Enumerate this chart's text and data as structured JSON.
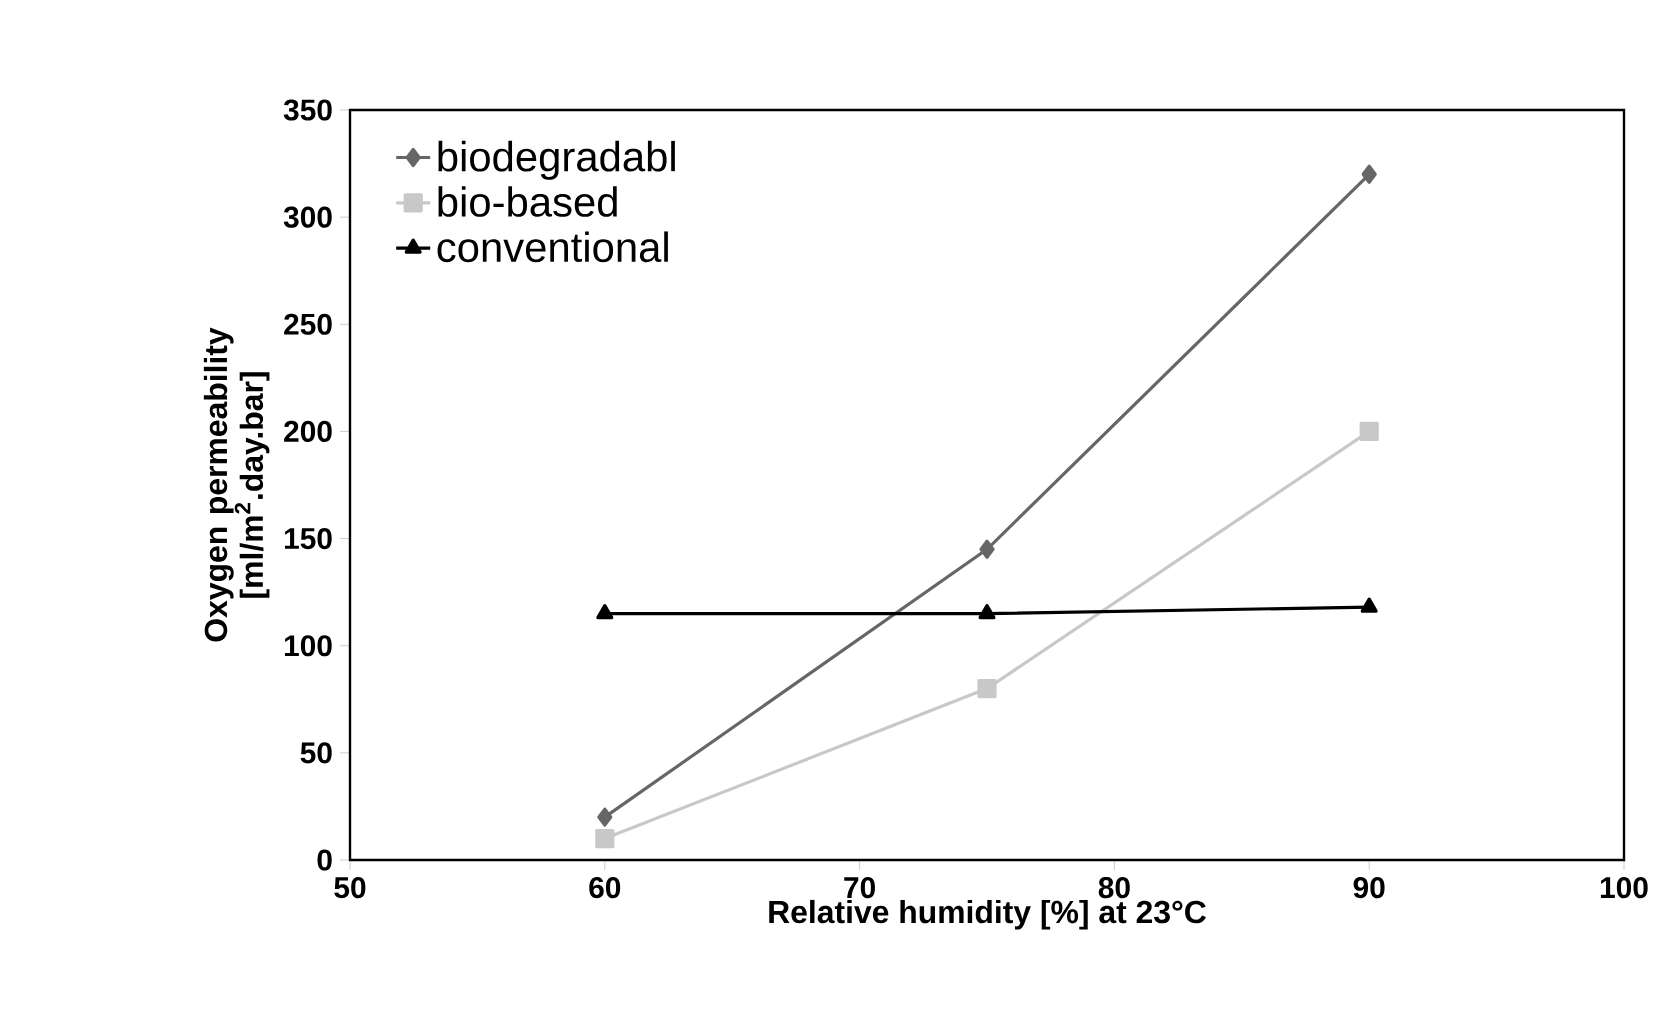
{
  "chart_data": {
    "type": "line",
    "xlabel": "Relative humidity [%] at 23°C",
    "ylabel": "Oxygen permeability [ml/m$^{2}$.day.bar]",
    "x": [
      60,
      75,
      90
    ],
    "series": [
      {
        "name": "biodegradabl",
        "color": "#666666",
        "marker": "diamond",
        "values": [
          20,
          145,
          320
        ]
      },
      {
        "name": "bio-based",
        "color": "#c8c8c8",
        "marker": "square",
        "values": [
          10,
          80,
          200
        ]
      },
      {
        "name": "conventional",
        "color": "#000000",
        "marker": "triangle",
        "values": [
          115,
          115,
          118
        ]
      }
    ],
    "xlim": [
      50,
      100
    ],
    "xticks": [
      50,
      60,
      70,
      80,
      90,
      100
    ],
    "ylim": [
      0,
      350
    ],
    "yticks": [
      0,
      50,
      100,
      150,
      200,
      250,
      300,
      350
    ],
    "grid": false,
    "legend": "top left",
    "line_style": "solid"
  }
}
